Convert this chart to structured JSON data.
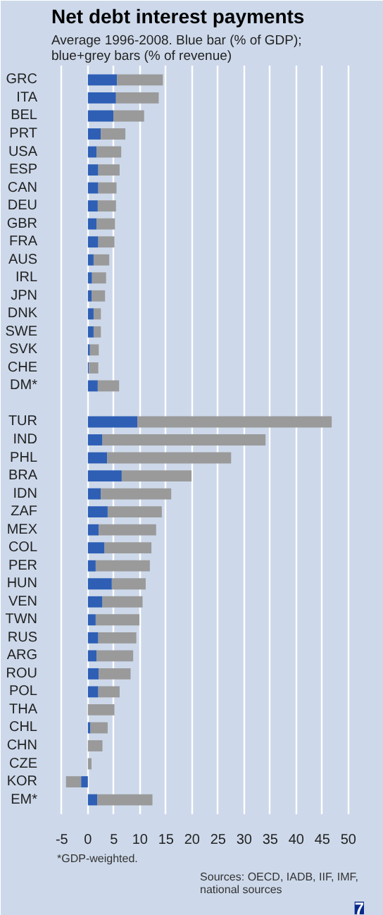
{
  "chart_data": {
    "type": "bar",
    "orientation": "horizontal",
    "stacked": true,
    "title": "Net debt interest payments",
    "subtitle": "Average 1996-2008. Blue bar (% of GDP); blue+grey bars (% of revenue)",
    "categories": [
      "GRC",
      "ITA",
      "BEL",
      "PRT",
      "USA",
      "ESP",
      "CAN",
      "DEU",
      "GBR",
      "FRA",
      "AUS",
      "IRL",
      "JPN",
      "DNK",
      "SWE",
      "SVK",
      "CHE",
      "DM*",
      null,
      "TUR",
      "IND",
      "PHL",
      "BRA",
      "IDN",
      "ZAF",
      "MEX",
      "COL",
      "PER",
      "HUN",
      "VEN",
      "TWN",
      "RUS",
      "ARG",
      "ROU",
      "POL",
      "THA",
      "CHL",
      "CHN",
      "CZE",
      "KOR",
      "EM*"
    ],
    "series": [
      {
        "color": "#2e5fb5",
        "values": [
          5.6,
          5.4,
          4.9,
          2.5,
          1.7,
          2.0,
          2.0,
          1.9,
          1.7,
          2.0,
          1.1,
          0.8,
          0.7,
          1.1,
          1.1,
          0.4,
          0.2,
          1.9,
          null,
          9.5,
          2.8,
          3.7,
          6.5,
          2.5,
          3.8,
          2.1,
          3.2,
          1.5,
          4.6,
          2.8,
          1.5,
          2.0,
          1.7,
          2.1,
          2.0,
          0,
          0.5,
          0,
          0,
          -1.3,
          1.8
        ]
      },
      {
        "color": "#9a9a9a",
        "values": [
          8.8,
          8.2,
          5.9,
          4.7,
          4.7,
          4.1,
          3.5,
          3.5,
          3.5,
          3.1,
          3.0,
          2.7,
          2.6,
          1.4,
          1.4,
          1.7,
          1.8,
          4.1,
          null,
          37.3,
          31.3,
          23.8,
          13.4,
          13.5,
          10.4,
          11.0,
          9.0,
          10.4,
          6.5,
          7.7,
          8.4,
          7.3,
          7.0,
          6.1,
          4.1,
          5.1,
          3.3,
          2.8,
          0.7,
          -2.9,
          10.6
        ]
      }
    ],
    "xlim": [
      -7,
      53
    ],
    "xticks": [
      -5,
      0,
      5,
      10,
      15,
      20,
      25,
      30,
      35,
      40,
      45,
      50
    ],
    "grid": "x",
    "annotations": [
      "*GDP-weighted.",
      "Sources: OECD, IADB, IIF, IMF, national sources",
      "7"
    ]
  }
}
